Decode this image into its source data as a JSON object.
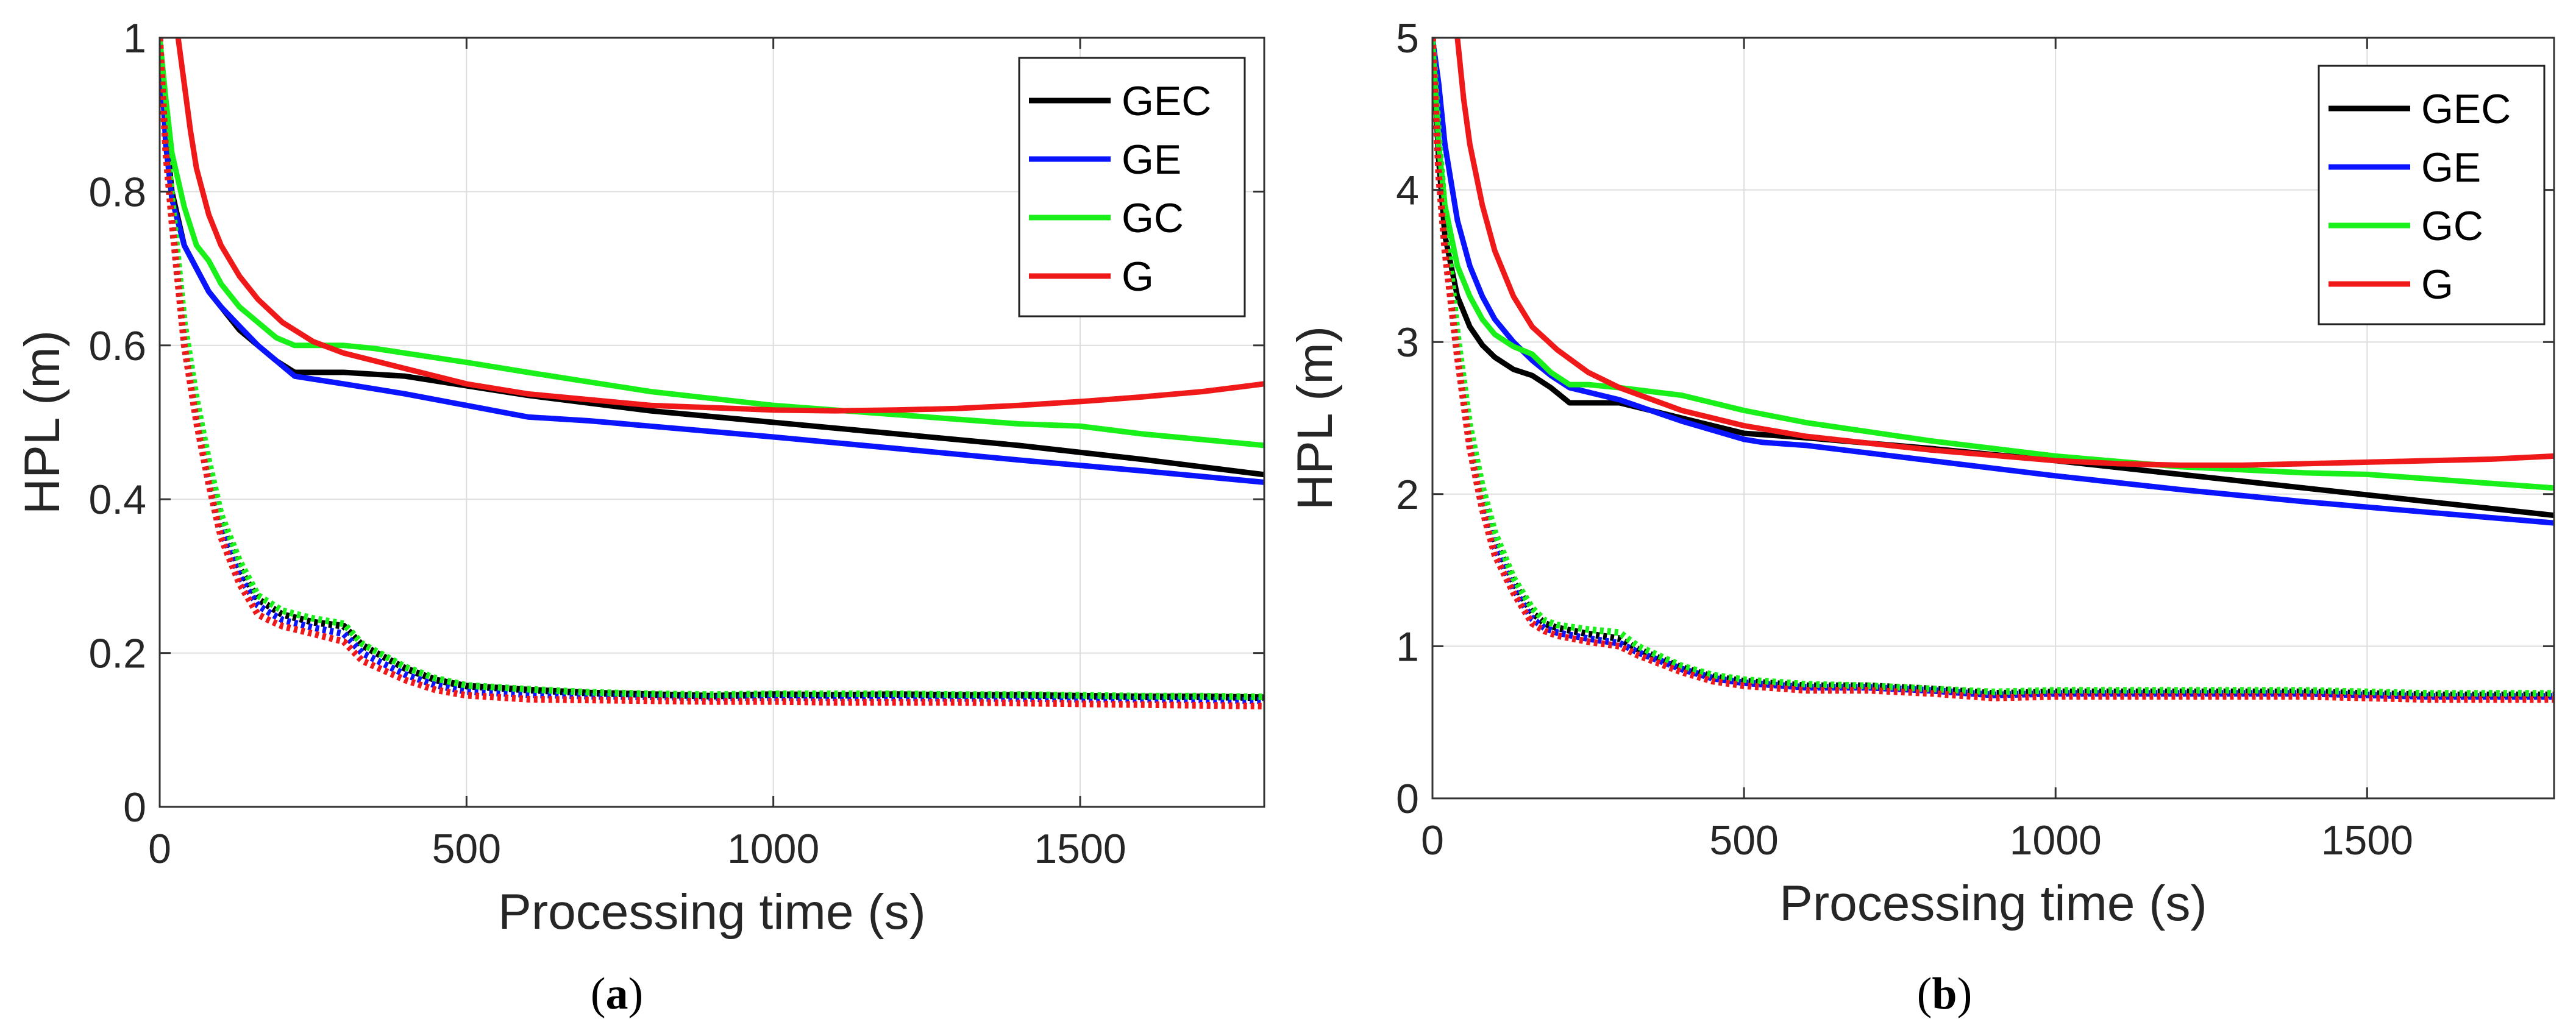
{
  "colors": {
    "GEC": "#000000",
    "GE": "#0a14ff",
    "GC": "#19f019",
    "G": "#f01919",
    "grid": "#dddddd",
    "axis": "#333333",
    "legend_border": "#222222"
  },
  "chart_data": [
    {
      "type": "line",
      "panel": "a",
      "caption_open": "(",
      "caption_letter": "a",
      "caption_close": ")",
      "xlabel": "Processing time (s)",
      "ylabel": "HPL (m)",
      "xlim": [
        0,
        1800
      ],
      "ylim": [
        0,
        1
      ],
      "xticks": [
        0,
        500,
        1000,
        1500
      ],
      "xtick_labels": [
        "0",
        "500",
        "1000",
        "1500"
      ],
      "yticks": [
        0,
        0.2,
        0.4,
        0.6,
        0.8,
        1
      ],
      "ytick_labels": [
        "0",
        "0.2",
        "0.4",
        "0.6",
        "0.8",
        "1"
      ],
      "grid": true,
      "legend_position": "top-right",
      "legend": [
        "GEC",
        "GE",
        "GC",
        "G"
      ],
      "series": [
        {
          "name": "GEC",
          "style": "solid",
          "x": [
            0,
            10,
            20,
            40,
            60,
            80,
            100,
            130,
            160,
            190,
            220,
            260,
            300,
            400,
            600,
            800,
            1000,
            1200,
            1400,
            1600,
            1800
          ],
          "y": [
            1.0,
            0.88,
            0.8,
            0.73,
            0.7,
            0.67,
            0.65,
            0.62,
            0.6,
            0.58,
            0.565,
            0.565,
            0.565,
            0.56,
            0.535,
            0.515,
            0.5,
            0.485,
            0.47,
            0.452,
            0.432
          ]
        },
        {
          "name": "GE",
          "style": "solid",
          "x": [
            0,
            10,
            20,
            40,
            60,
            80,
            100,
            130,
            160,
            190,
            220,
            300,
            400,
            500,
            580,
            600,
            700,
            800,
            900,
            1000,
            1200,
            1400,
            1600,
            1800
          ],
          "y": [
            1.0,
            0.86,
            0.79,
            0.73,
            0.7,
            0.67,
            0.65,
            0.625,
            0.6,
            0.58,
            0.56,
            0.55,
            0.537,
            0.522,
            0.51,
            0.507,
            0.502,
            0.495,
            0.488,
            0.481,
            0.466,
            0.451,
            0.437,
            0.422
          ]
        },
        {
          "name": "GC",
          "style": "solid",
          "x": [
            0,
            10,
            20,
            40,
            60,
            80,
            100,
            130,
            160,
            190,
            220,
            250,
            300,
            350,
            400,
            500,
            600,
            800,
            1000,
            1200,
            1400,
            1500,
            1600,
            1800
          ],
          "y": [
            1.0,
            0.92,
            0.85,
            0.78,
            0.73,
            0.71,
            0.68,
            0.65,
            0.63,
            0.61,
            0.6,
            0.6,
            0.6,
            0.596,
            0.59,
            0.578,
            0.565,
            0.54,
            0.522,
            0.51,
            0.498,
            0.495,
            0.485,
            0.47
          ]
        },
        {
          "name": "G",
          "style": "solid",
          "x": [
            30,
            40,
            50,
            60,
            80,
            100,
            130,
            160,
            200,
            250,
            300,
            400,
            500,
            600,
            800,
            1000,
            1100,
            1200,
            1300,
            1400,
            1500,
            1600,
            1700,
            1800
          ],
          "y": [
            1.0,
            0.94,
            0.88,
            0.83,
            0.77,
            0.73,
            0.69,
            0.66,
            0.63,
            0.605,
            0.59,
            0.57,
            0.55,
            0.537,
            0.522,
            0.516,
            0.515,
            0.516,
            0.518,
            0.522,
            0.527,
            0.533,
            0.54,
            0.55
          ]
        },
        {
          "name": "GEC",
          "style": "dotted",
          "x": [
            0,
            10,
            20,
            40,
            60,
            80,
            100,
            130,
            160,
            180,
            200,
            250,
            300,
            330,
            400,
            450,
            500,
            600,
            700,
            800,
            900,
            1000,
            1100,
            1200,
            1300,
            1400,
            1500,
            1600,
            1700,
            1800
          ],
          "y": [
            1.0,
            0.87,
            0.78,
            0.62,
            0.52,
            0.44,
            0.37,
            0.31,
            0.27,
            0.26,
            0.25,
            0.24,
            0.235,
            0.21,
            0.18,
            0.165,
            0.157,
            0.152,
            0.148,
            0.146,
            0.144,
            0.146,
            0.145,
            0.146,
            0.145,
            0.145,
            0.144,
            0.143,
            0.143,
            0.142
          ]
        },
        {
          "name": "GE",
          "style": "dotted",
          "x": [
            0,
            10,
            20,
            40,
            60,
            80,
            100,
            130,
            160,
            180,
            200,
            250,
            300,
            330,
            400,
            450,
            500,
            600,
            700,
            800,
            900,
            1000,
            1100,
            1200,
            1300,
            1400,
            1500,
            1600,
            1700,
            1800
          ],
          "y": [
            1.0,
            0.86,
            0.77,
            0.61,
            0.51,
            0.43,
            0.36,
            0.3,
            0.262,
            0.252,
            0.243,
            0.233,
            0.225,
            0.2,
            0.172,
            0.158,
            0.15,
            0.146,
            0.144,
            0.143,
            0.142,
            0.142,
            0.142,
            0.142,
            0.141,
            0.141,
            0.14,
            0.14,
            0.139,
            0.138
          ]
        },
        {
          "name": "GC",
          "style": "dotted",
          "x": [
            0,
            10,
            20,
            40,
            60,
            80,
            100,
            130,
            160,
            180,
            200,
            250,
            300,
            330,
            400,
            450,
            500,
            600,
            700,
            800,
            900,
            1000,
            1100,
            1200,
            1300,
            1400,
            1500,
            1600,
            1700,
            1800
          ],
          "y": [
            1.0,
            0.88,
            0.79,
            0.63,
            0.53,
            0.45,
            0.38,
            0.32,
            0.275,
            0.265,
            0.255,
            0.245,
            0.238,
            0.212,
            0.182,
            0.167,
            0.158,
            0.153,
            0.149,
            0.147,
            0.146,
            0.147,
            0.147,
            0.147,
            0.146,
            0.146,
            0.145,
            0.144,
            0.144,
            0.143
          ]
        },
        {
          "name": "G",
          "style": "dotted",
          "x": [
            0,
            10,
            20,
            40,
            60,
            80,
            100,
            130,
            160,
            180,
            200,
            250,
            300,
            330,
            400,
            450,
            500,
            600,
            700,
            800,
            900,
            1000,
            1100,
            1200,
            1300,
            1400,
            1500,
            1600,
            1700,
            1800
          ],
          "y": [
            1.0,
            0.85,
            0.76,
            0.6,
            0.5,
            0.42,
            0.35,
            0.29,
            0.25,
            0.242,
            0.235,
            0.225,
            0.215,
            0.19,
            0.165,
            0.152,
            0.145,
            0.14,
            0.139,
            0.138,
            0.137,
            0.137,
            0.136,
            0.136,
            0.136,
            0.135,
            0.134,
            0.133,
            0.132,
            0.131
          ]
        }
      ]
    },
    {
      "type": "line",
      "panel": "b",
      "caption_open": "(",
      "caption_letter": "b",
      "caption_close": ")",
      "xlabel": "Processing time (s)",
      "ylabel": "HPL (m)",
      "xlim": [
        0,
        1800
      ],
      "ylim": [
        0,
        5
      ],
      "xticks": [
        0,
        500,
        1000,
        1500
      ],
      "xtick_labels": [
        "0",
        "500",
        "1000",
        "1500"
      ],
      "yticks": [
        0,
        1,
        2,
        3,
        4,
        5
      ],
      "ytick_labels": [
        "0",
        "1",
        "2",
        "3",
        "4",
        "5"
      ],
      "grid": true,
      "legend_position": "top-right",
      "legend": [
        "GEC",
        "GE",
        "GC",
        "G"
      ],
      "series": [
        {
          "name": "GEC",
          "style": "solid",
          "x": [
            0,
            10,
            20,
            40,
            60,
            80,
            100,
            130,
            160,
            190,
            220,
            260,
            300,
            400,
            500,
            600,
            800,
            1000,
            1200,
            1400,
            1600,
            1800
          ],
          "y": [
            5.0,
            4.2,
            3.7,
            3.3,
            3.1,
            2.98,
            2.9,
            2.82,
            2.78,
            2.7,
            2.6,
            2.6,
            2.6,
            2.5,
            2.4,
            2.37,
            2.3,
            2.22,
            2.13,
            2.04,
            1.95,
            1.86
          ]
        },
        {
          "name": "GE",
          "style": "solid",
          "x": [
            0,
            10,
            20,
            40,
            60,
            80,
            100,
            130,
            160,
            190,
            220,
            300,
            400,
            500,
            530,
            600,
            800,
            1000,
            1200,
            1400,
            1600,
            1800
          ],
          "y": [
            5.0,
            4.7,
            4.3,
            3.8,
            3.5,
            3.3,
            3.15,
            3.0,
            2.88,
            2.78,
            2.7,
            2.62,
            2.48,
            2.36,
            2.34,
            2.32,
            2.22,
            2.12,
            2.03,
            1.95,
            1.88,
            1.81
          ]
        },
        {
          "name": "GC",
          "style": "solid",
          "x": [
            0,
            10,
            20,
            40,
            60,
            80,
            100,
            130,
            160,
            190,
            220,
            250,
            300,
            400,
            500,
            600,
            800,
            1000,
            1200,
            1400,
            1500,
            1600,
            1800
          ],
          "y": [
            5.0,
            4.3,
            3.9,
            3.5,
            3.3,
            3.15,
            3.05,
            2.97,
            2.92,
            2.8,
            2.72,
            2.72,
            2.7,
            2.65,
            2.55,
            2.47,
            2.35,
            2.25,
            2.18,
            2.14,
            2.13,
            2.1,
            2.04
          ]
        },
        {
          "name": "G",
          "style": "solid",
          "x": [
            40,
            50,
            60,
            80,
            100,
            130,
            160,
            200,
            250,
            300,
            400,
            500,
            600,
            800,
            1000,
            1100,
            1200,
            1300,
            1400,
            1500,
            1600,
            1700,
            1800
          ],
          "y": [
            5.0,
            4.6,
            4.3,
            3.9,
            3.6,
            3.3,
            3.1,
            2.95,
            2.8,
            2.7,
            2.55,
            2.45,
            2.38,
            2.29,
            2.22,
            2.2,
            2.19,
            2.19,
            2.2,
            2.21,
            2.22,
            2.23,
            2.25
          ]
        },
        {
          "name": "GEC",
          "style": "dotted",
          "x": [
            0,
            10,
            20,
            40,
            60,
            80,
            100,
            130,
            160,
            180,
            200,
            250,
            300,
            330,
            400,
            450,
            500,
            600,
            700,
            800,
            900,
            1000,
            1100,
            1200,
            1300,
            1400,
            1500,
            1600,
            1700,
            1800
          ],
          "y": [
            5.0,
            4.3,
            3.8,
            3.0,
            2.4,
            2.0,
            1.7,
            1.42,
            1.22,
            1.15,
            1.12,
            1.08,
            1.05,
            0.98,
            0.86,
            0.8,
            0.77,
            0.74,
            0.74,
            0.72,
            0.69,
            0.7,
            0.7,
            0.7,
            0.7,
            0.7,
            0.69,
            0.68,
            0.68,
            0.68
          ]
        },
        {
          "name": "GE",
          "style": "dotted",
          "x": [
            0,
            10,
            20,
            40,
            60,
            80,
            100,
            130,
            160,
            180,
            200,
            250,
            300,
            330,
            400,
            450,
            500,
            600,
            700,
            800,
            900,
            1000,
            1100,
            1200,
            1300,
            1400,
            1500,
            1600,
            1700,
            1800
          ],
          "y": [
            5.0,
            4.2,
            3.7,
            2.95,
            2.35,
            1.95,
            1.65,
            1.38,
            1.18,
            1.12,
            1.09,
            1.05,
            1.02,
            0.96,
            0.85,
            0.79,
            0.76,
            0.73,
            0.73,
            0.71,
            0.68,
            0.69,
            0.69,
            0.69,
            0.69,
            0.69,
            0.68,
            0.67,
            0.67,
            0.67
          ]
        },
        {
          "name": "GC",
          "style": "dotted",
          "x": [
            0,
            10,
            20,
            40,
            60,
            80,
            100,
            130,
            160,
            180,
            200,
            250,
            300,
            330,
            400,
            450,
            500,
            600,
            700,
            800,
            900,
            1000,
            1100,
            1200,
            1300,
            1400,
            1500,
            1600,
            1700,
            1800
          ],
          "y": [
            5.0,
            4.35,
            3.85,
            3.05,
            2.45,
            2.05,
            1.75,
            1.45,
            1.25,
            1.17,
            1.14,
            1.11,
            1.09,
            1.0,
            0.87,
            0.81,
            0.78,
            0.75,
            0.74,
            0.72,
            0.7,
            0.71,
            0.71,
            0.71,
            0.71,
            0.71,
            0.7,
            0.69,
            0.69,
            0.69
          ]
        },
        {
          "name": "G",
          "style": "dotted",
          "x": [
            0,
            10,
            20,
            40,
            60,
            80,
            100,
            130,
            160,
            180,
            200,
            250,
            300,
            330,
            400,
            450,
            500,
            600,
            700,
            800,
            900,
            1000,
            1100,
            1200,
            1300,
            1400,
            1500,
            1600,
            1700,
            1800
          ],
          "y": [
            5.0,
            4.1,
            3.6,
            2.9,
            2.3,
            1.9,
            1.6,
            1.35,
            1.15,
            1.1,
            1.07,
            1.03,
            1.0,
            0.94,
            0.83,
            0.77,
            0.74,
            0.71,
            0.71,
            0.69,
            0.66,
            0.67,
            0.67,
            0.67,
            0.67,
            0.67,
            0.66,
            0.65,
            0.65,
            0.65
          ]
        }
      ]
    }
  ]
}
